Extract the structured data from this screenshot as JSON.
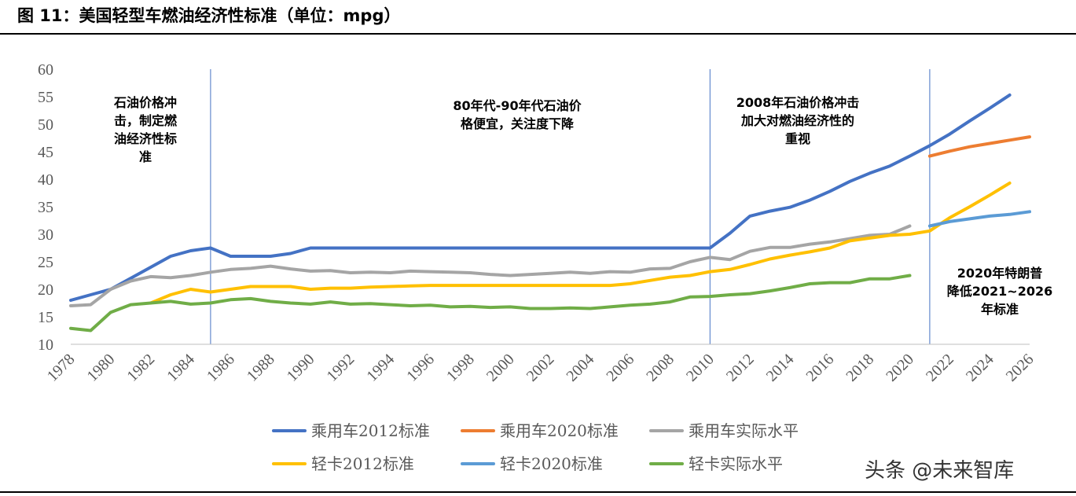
{
  "figure": {
    "title": "图 11：美国轻型车燃油经济性标准（单位：mpg）",
    "watermark": "头条 @未来智库"
  },
  "chart_data": {
    "type": "line",
    "title": "",
    "xlabel": "",
    "ylabel": "",
    "x": [
      1978,
      1979,
      1980,
      1981,
      1982,
      1983,
      1984,
      1985,
      1986,
      1987,
      1988,
      1989,
      1990,
      1991,
      1992,
      1993,
      1994,
      1995,
      1996,
      1997,
      1998,
      1999,
      2000,
      2001,
      2002,
      2003,
      2004,
      2005,
      2006,
      2007,
      2008,
      2009,
      2010,
      2011,
      2012,
      2013,
      2014,
      2015,
      2016,
      2017,
      2018,
      2019,
      2020,
      2021,
      2022,
      2023,
      2024,
      2025,
      2026
    ],
    "xticks": [
      "1978",
      "1980",
      "1982",
      "1984",
      "1986",
      "1988",
      "1990",
      "1992",
      "1994",
      "1996",
      "1998",
      "2000",
      "2002",
      "2004",
      "2006",
      "2008",
      "2010",
      "2012",
      "2014",
      "2016",
      "2018",
      "2020",
      "2022",
      "2024",
      "2026"
    ],
    "yticks": [
      "10",
      "15",
      "20",
      "25",
      "30",
      "35",
      "40",
      "45",
      "50",
      "55",
      "60"
    ],
    "ylim": [
      10,
      60
    ],
    "xlim": [
      1978,
      2026
    ],
    "grid": false,
    "legend_position": "bottom",
    "series": [
      {
        "name": "乘用车2012标准",
        "color": "#4472C4",
        "x": [
          1978,
          1979,
          1980,
          1981,
          1982,
          1983,
          1984,
          1985,
          1986,
          1987,
          1988,
          1989,
          1990,
          1991,
          1992,
          1993,
          1994,
          1995,
          1996,
          1997,
          1998,
          1999,
          2000,
          2001,
          2002,
          2003,
          2004,
          2005,
          2006,
          2007,
          2008,
          2009,
          2010,
          2011,
          2012,
          2013,
          2014,
          2015,
          2016,
          2017,
          2018,
          2019,
          2020,
          2021,
          2022,
          2023,
          2024,
          2025
        ],
        "values": [
          18,
          19,
          20,
          22,
          24,
          26,
          27,
          27.5,
          26,
          26,
          26,
          26.5,
          27.5,
          27.5,
          27.5,
          27.5,
          27.5,
          27.5,
          27.5,
          27.5,
          27.5,
          27.5,
          27.5,
          27.5,
          27.5,
          27.5,
          27.5,
          27.5,
          27.5,
          27.5,
          27.5,
          27.5,
          27.5,
          30.2,
          33.3,
          34.2,
          34.9,
          36.2,
          37.8,
          39.6,
          41.1,
          42.4,
          44.2,
          46.1,
          48.2,
          50.6,
          52.9,
          55.3
        ]
      },
      {
        "name": "乘用车2020标准",
        "color": "#ED7D31",
        "x": [
          2021,
          2022,
          2023,
          2024,
          2025,
          2026
        ],
        "values": [
          44.2,
          45.1,
          45.9,
          46.5,
          47.1,
          47.7
        ]
      },
      {
        "name": "乘用车实际水平",
        "color": "#A5A5A5",
        "x": [
          1978,
          1979,
          1980,
          1981,
          1982,
          1983,
          1984,
          1985,
          1986,
          1987,
          1988,
          1989,
          1990,
          1991,
          1992,
          1993,
          1994,
          1995,
          1996,
          1997,
          1998,
          1999,
          2000,
          2001,
          2002,
          2003,
          2004,
          2005,
          2006,
          2007,
          2008,
          2009,
          2010,
          2011,
          2012,
          2013,
          2014,
          2015,
          2016,
          2017,
          2018,
          2019,
          2020
        ],
        "values": [
          17,
          17.2,
          20,
          21.5,
          22.3,
          22.1,
          22.5,
          23.1,
          23.6,
          23.8,
          24.2,
          23.7,
          23.3,
          23.4,
          23.0,
          23.1,
          23.0,
          23.3,
          23.2,
          23.1,
          23.0,
          22.7,
          22.5,
          22.7,
          22.9,
          23.1,
          22.9,
          23.2,
          23.1,
          23.7,
          23.8,
          25.0,
          25.8,
          25.4,
          26.9,
          27.6,
          27.6,
          28.2,
          28.6,
          29.2,
          29.8,
          30.0,
          31.5
        ]
      },
      {
        "name": "轻卡2012标准",
        "color": "#FFC000",
        "x": [
          1982,
          1983,
          1984,
          1985,
          1986,
          1987,
          1988,
          1989,
          1990,
          1991,
          1992,
          1993,
          1994,
          1995,
          1996,
          1997,
          1998,
          1999,
          2000,
          2001,
          2002,
          2003,
          2004,
          2005,
          2006,
          2007,
          2008,
          2009,
          2010,
          2011,
          2012,
          2013,
          2014,
          2015,
          2016,
          2017,
          2018,
          2019,
          2020,
          2021,
          2022,
          2023,
          2024,
          2025
        ],
        "values": [
          17.5,
          19.0,
          20.0,
          19.5,
          20.0,
          20.5,
          20.5,
          20.5,
          20.0,
          20.2,
          20.2,
          20.4,
          20.5,
          20.6,
          20.7,
          20.7,
          20.7,
          20.7,
          20.7,
          20.7,
          20.7,
          20.7,
          20.7,
          20.7,
          21.0,
          21.6,
          22.2,
          22.5,
          23.2,
          23.6,
          24.5,
          25.5,
          26.2,
          26.8,
          27.5,
          28.8,
          29.3,
          29.8,
          30.0,
          30.6,
          33.0,
          35.0,
          37.1,
          39.3
        ]
      },
      {
        "name": "轻卡2020标准",
        "color": "#5B9BD5",
        "x": [
          2021,
          2022,
          2023,
          2024,
          2025,
          2026
        ],
        "values": [
          31.5,
          32.3,
          32.8,
          33.3,
          33.6,
          34.1
        ]
      },
      {
        "name": "轻卡实际水平",
        "color": "#70AD47",
        "x": [
          1978,
          1979,
          1980,
          1981,
          1982,
          1983,
          1984,
          1985,
          1986,
          1987,
          1988,
          1989,
          1990,
          1991,
          1992,
          1993,
          1994,
          1995,
          1996,
          1997,
          1998,
          1999,
          2000,
          2001,
          2002,
          2003,
          2004,
          2005,
          2006,
          2007,
          2008,
          2009,
          2010,
          2011,
          2012,
          2013,
          2014,
          2015,
          2016,
          2017,
          2018,
          2019,
          2020
        ],
        "values": [
          12.9,
          12.5,
          15.8,
          17.2,
          17.5,
          17.8,
          17.3,
          17.5,
          18.1,
          18.3,
          17.8,
          17.5,
          17.3,
          17.7,
          17.3,
          17.4,
          17.2,
          17.0,
          17.1,
          16.8,
          16.9,
          16.7,
          16.8,
          16.5,
          16.5,
          16.6,
          16.5,
          16.8,
          17.1,
          17.3,
          17.7,
          18.6,
          18.7,
          19.0,
          19.2,
          19.7,
          20.3,
          21.0,
          21.2,
          21.2,
          21.9,
          21.9,
          22.5
        ]
      }
    ],
    "dividers": [
      1985,
      2010,
      2021
    ],
    "annotations": [
      {
        "lines": [
          "石油价格冲",
          "击，制定燃",
          "油经济性标",
          "准"
        ]
      },
      {
        "lines": [
          "80年代-90年代石油价",
          "格便宜，关注度下降"
        ]
      },
      {
        "lines": [
          "2008年石油价格冲击",
          "加大对燃油经济性的",
          "重视"
        ]
      },
      {
        "lines": [
          "2020年特朗普",
          "降低2021~2026",
          "年标准"
        ]
      }
    ]
  }
}
